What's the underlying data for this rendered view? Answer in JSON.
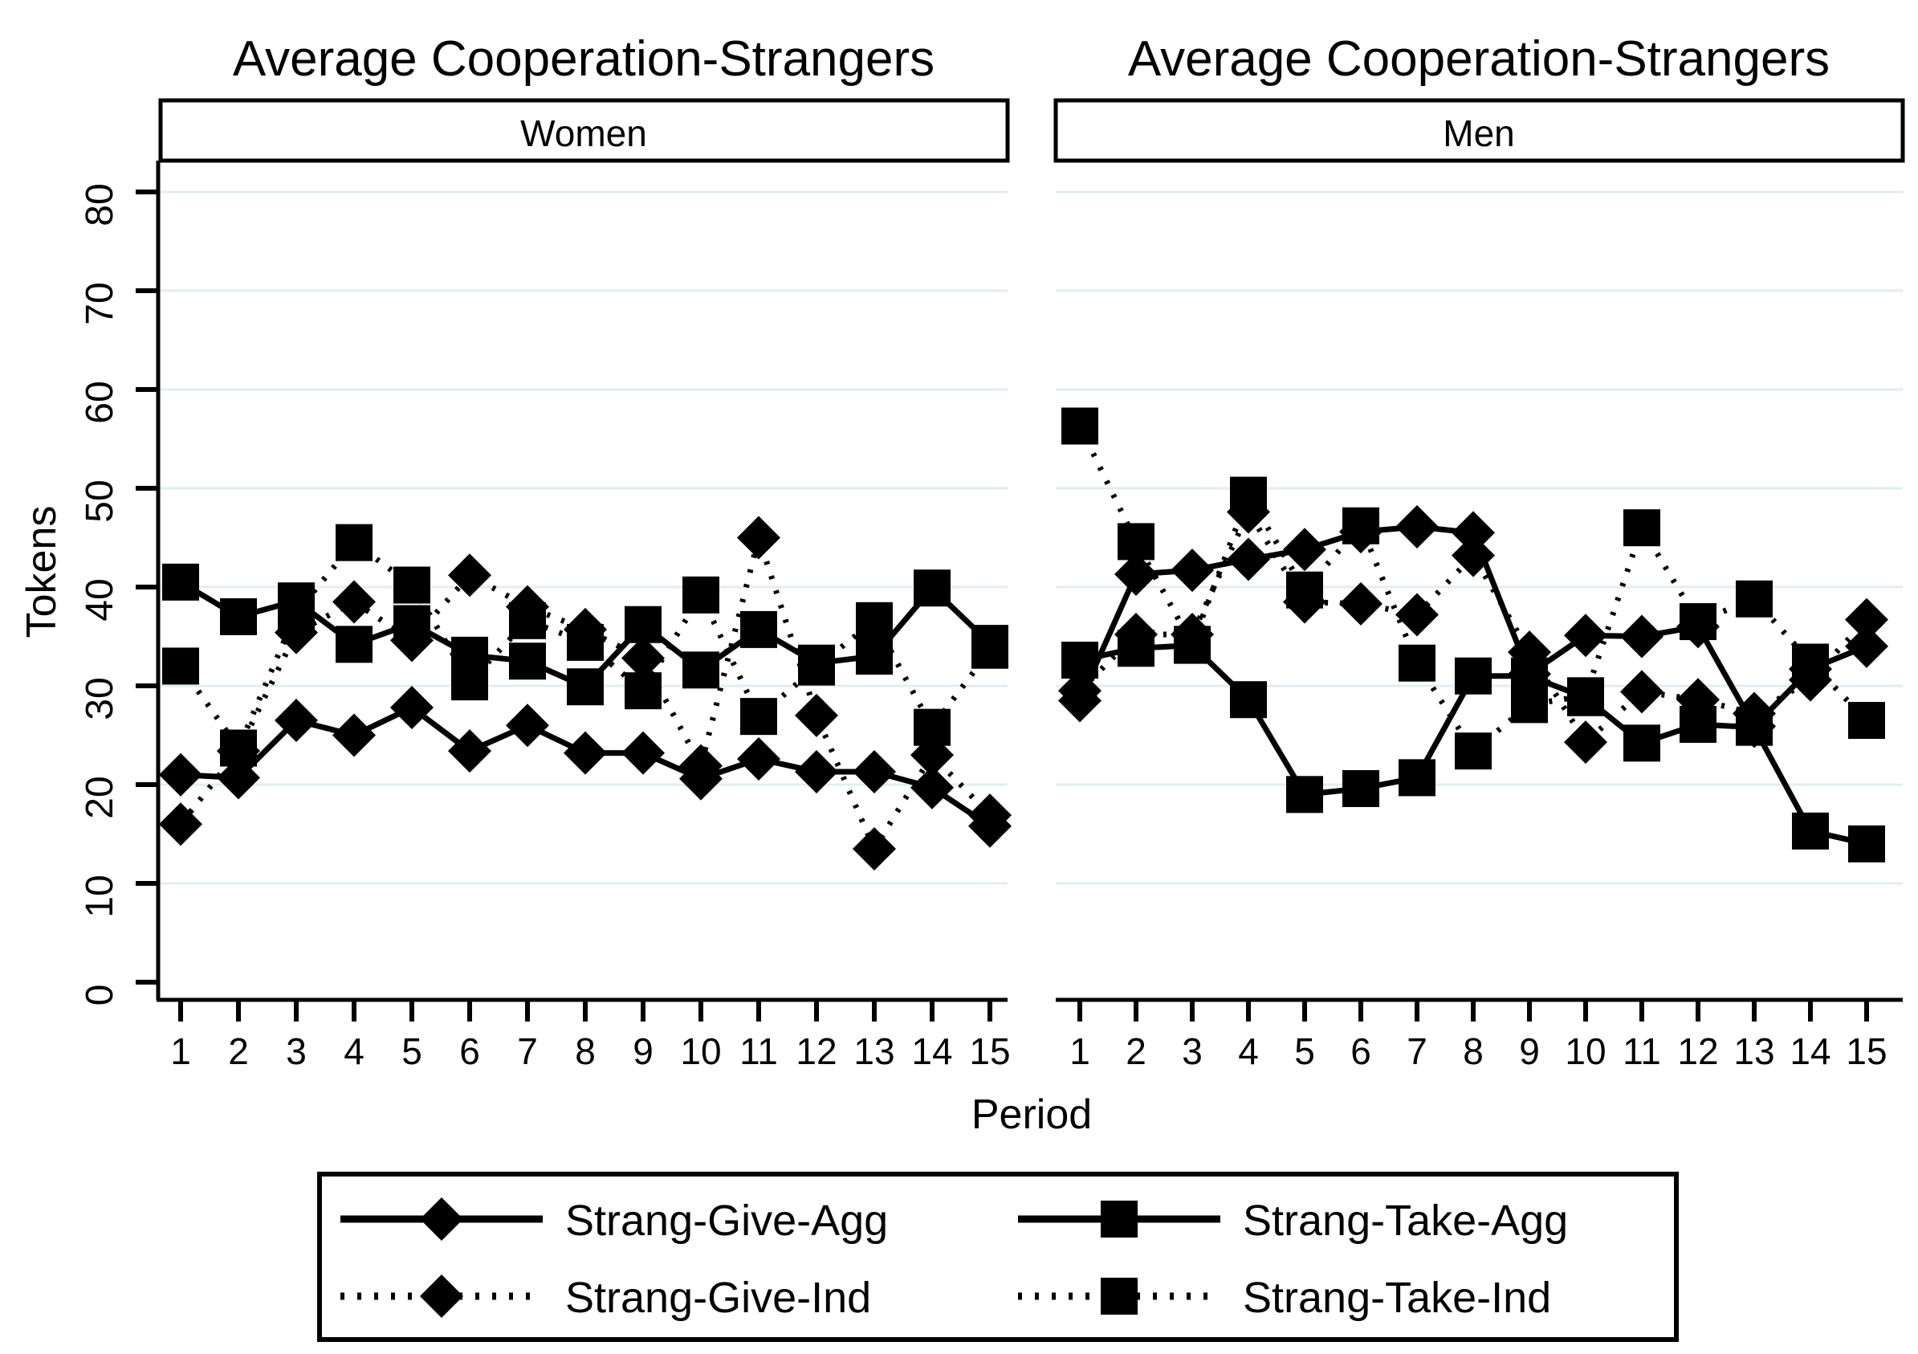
{
  "figure": {
    "title_left": "Average Cooperation-Strangers",
    "title_right": "Average Cooperation-Strangers",
    "ylabel": "Tokens",
    "xlabel": "Period",
    "panel_left_header": "Women",
    "panel_right_header": "Men"
  },
  "legend": {
    "entries": [
      {
        "label": "Strang-Give-Agg",
        "line": "solid",
        "marker": "diamond"
      },
      {
        "label": "Strang-Take-Agg",
        "line": "solid",
        "marker": "square"
      },
      {
        "label": "Strang-Give-Ind",
        "line": "dotted",
        "marker": "diamond"
      },
      {
        "label": "Strang-Take-Ind",
        "line": "dotted",
        "marker": "square"
      }
    ]
  },
  "chart_data": {
    "type": "line",
    "x": [
      1,
      2,
      3,
      4,
      5,
      6,
      7,
      8,
      9,
      10,
      11,
      12,
      13,
      14,
      15
    ],
    "xlabel": "Period",
    "ylabel": "Tokens",
    "ylim": [
      0,
      85
    ],
    "yticks": [
      0,
      10,
      20,
      30,
      40,
      50,
      60,
      70,
      80
    ],
    "xticklabels": [
      "1",
      "2",
      "3",
      "4",
      "5",
      "6",
      "7",
      "8",
      "9",
      "10",
      "11",
      "12",
      "13",
      "14",
      "15"
    ],
    "grid": "horizontal, pale blue, at 10..80",
    "legend_position": "bottom box, two columns",
    "panels": [
      {
        "label": "Women",
        "title": "Average Cooperation-Strangers",
        "series": [
          {
            "name": "Strang-Give-Agg",
            "line": "solid",
            "marker": "diamond",
            "values": [
              21.0,
              20.7,
              26.5,
              25.0,
              27.8,
              23.4,
              26.0,
              23.2,
              23.2,
              20.6,
              22.6,
              21.3,
              21.3,
              19.7,
              15.8
            ]
          },
          {
            "name": "Strang-Take-Agg",
            "line": "solid",
            "marker": "square",
            "values": [
              40.5,
              37.0,
              38.6,
              34.2,
              36.3,
              33.1,
              32.5,
              29.9,
              36.2,
              31.6,
              35.7,
              32.3,
              33.0,
              39.9,
              34.3
            ]
          },
          {
            "name": "Strang-Give-Ind",
            "line": "dotted",
            "marker": "diamond",
            "values": [
              16.0,
              23.4,
              35.4,
              38.5,
              34.6,
              41.2,
              38.0,
              35.7,
              32.8,
              21.9,
              45.0,
              27.0,
              13.5,
              23.0,
              16.9
            ]
          },
          {
            "name": "Strang-Take-Ind",
            "line": "dotted",
            "marker": "square",
            "values": [
              32.0,
              23.7,
              37.4,
              44.5,
              40.2,
              30.4,
              36.6,
              34.4,
              29.5,
              39.2,
              26.9,
              31.9,
              36.6,
              25.8,
              33.6
            ]
          }
        ]
      },
      {
        "label": "Men",
        "title": "Average Cooperation-Strangers",
        "series": [
          {
            "name": "Strang-Give-Agg",
            "line": "solid",
            "marker": "diamond",
            "values": [
              28.5,
              41.3,
              41.7,
              42.8,
              43.8,
              45.6,
              46.1,
              45.5,
              31.2,
              35.1,
              35.0,
              36.0,
              25.9,
              31.7,
              34.0
            ]
          },
          {
            "name": "Strang-Take-Agg",
            "line": "solid",
            "marker": "square",
            "values": [
              32.6,
              33.8,
              34.1,
              28.6,
              19.0,
              19.6,
              20.7,
              31.0,
              31.0,
              28.8,
              24.2,
              26.1,
              25.8,
              15.3,
              14.0
            ]
          },
          {
            "name": "Strang-Give-Ind",
            "line": "dotted",
            "marker": "diamond",
            "values": [
              29.5,
              35.2,
              35.2,
              47.6,
              38.5,
              38.3,
              37.2,
              43.2,
              33.4,
              24.3,
              29.4,
              28.6,
              27.2,
              30.6,
              36.7
            ]
          },
          {
            "name": "Strang-Take-Ind",
            "line": "dotted",
            "marker": "square",
            "values": [
              56.3,
              44.6,
              34.2,
              49.3,
              39.7,
              46.2,
              32.3,
              23.4,
              28.1,
              29.0,
              46.0,
              36.5,
              38.8,
              32.4,
              26.5
            ]
          }
        ]
      }
    ]
  },
  "style": {
    "grid_color": "#e2edf2",
    "ink_color": "#000000",
    "background": "#ffffff"
  }
}
